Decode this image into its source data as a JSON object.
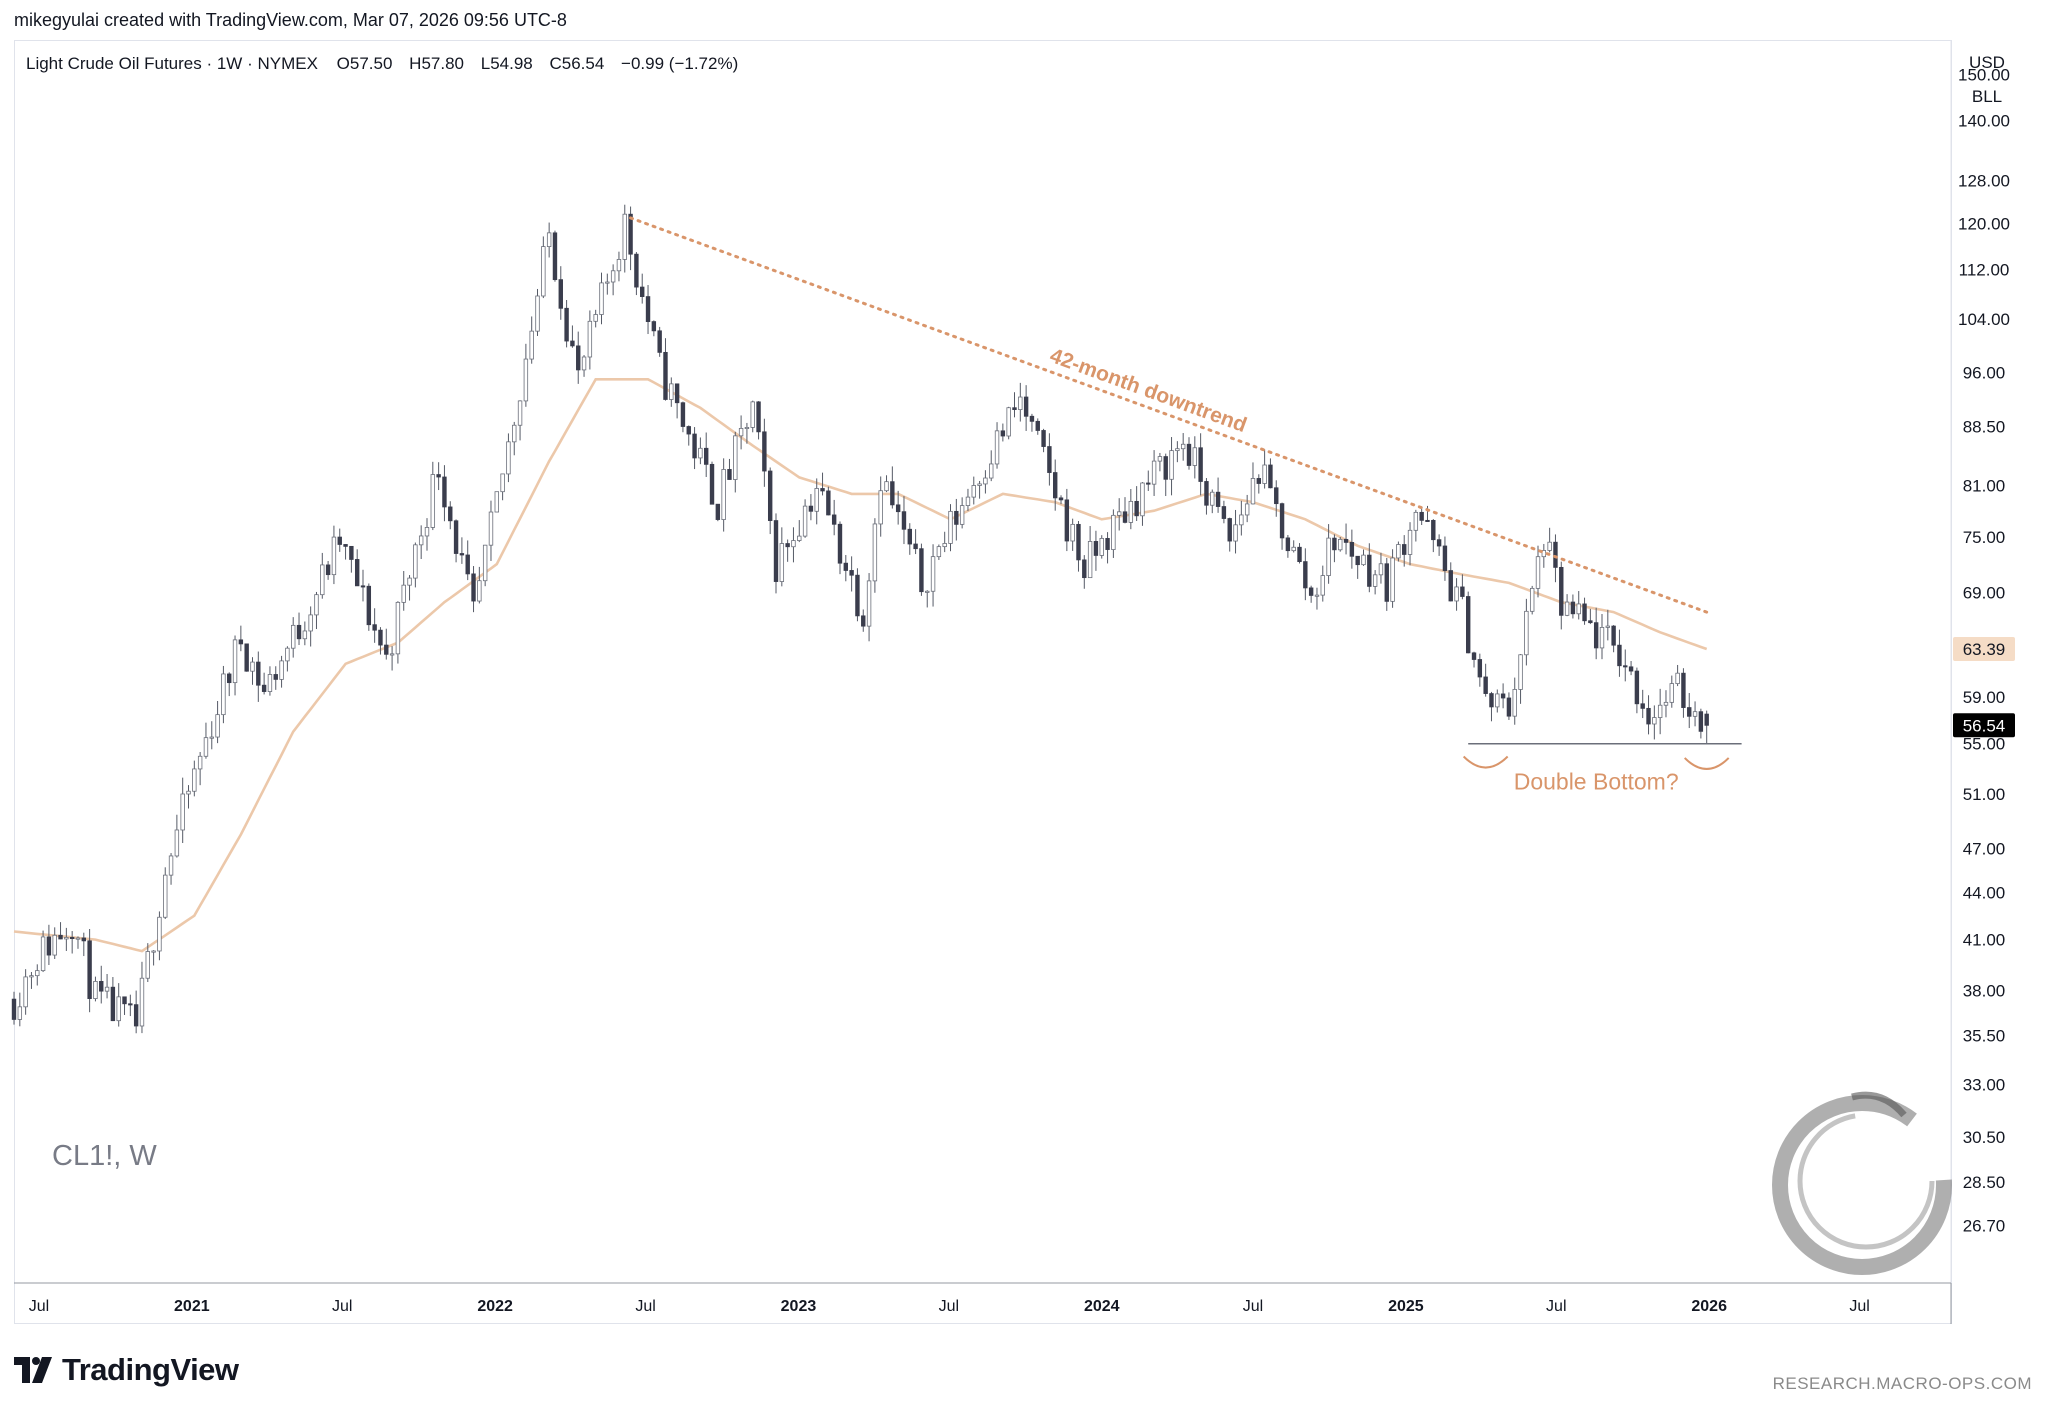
{
  "header": {
    "credit": "mikegyulai created with TradingView.com, Mar 07, 2026 09:56 UTC-8"
  },
  "legend": {
    "symbol_desc": "Light Crude Oil Futures · 1W · NYMEX",
    "open_label": "O",
    "open": "57.50",
    "high_label": "H",
    "high": "57.80",
    "low_label": "L",
    "low": "54.98",
    "close_label": "C",
    "close": "56.54",
    "change": "−0.99 (−1.72%)"
  },
  "price_scale": {
    "currency": "USD",
    "unit": "BLL",
    "ma_value": "63.39",
    "last_value": "56.54"
  },
  "symbol_watermark": "CL1!, W",
  "annotations": {
    "trend_label": "42-month downtrend",
    "pattern_label": "Double Bottom?"
  },
  "footer": {
    "brand": "TradingView",
    "site": "RESEARCH.MACRO-OPS.COM"
  },
  "colors": {
    "up_candle": "#ffffff",
    "down_candle": "#3a3d4d",
    "wick": "#555a66",
    "moving_average": "#ecc8aa",
    "annotation": "#d9956a",
    "ma_badge": "#f5dcc6",
    "last_badge": "#000000"
  },
  "chart_data": {
    "type": "candlestick",
    "title": "Light Crude Oil Futures · 1W · NYMEX",
    "scale": "log",
    "ylim": [
      24.5,
      158
    ],
    "y_ticks": [
      150.0,
      140.0,
      128.0,
      120.0,
      112.0,
      104.0,
      96.0,
      88.5,
      81.0,
      75.0,
      69.0,
      63.39,
      59.0,
      56.54,
      55.0,
      51.0,
      47.0,
      44.0,
      41.0,
      38.0,
      35.5,
      33.0,
      30.5,
      28.5,
      26.7
    ],
    "y_tick_labels": [
      "150.00",
      "140.00",
      "128.00",
      "120.00",
      "112.00",
      "104.00",
      "96.00",
      "88.50",
      "81.00",
      "75.00",
      "69.00",
      "",
      "59.00",
      "",
      "55.00",
      "51.00",
      "47.00",
      "44.00",
      "41.00",
      "38.00",
      "35.50",
      "33.00",
      "30.50",
      "28.50",
      "26.70"
    ],
    "x_range": [
      "2020-06-01",
      "2026-10-19"
    ],
    "x_ticks": [
      {
        "date": "2020-07-01",
        "label": "Jul",
        "bold": false
      },
      {
        "date": "2021-01-01",
        "label": "2021",
        "bold": true
      },
      {
        "date": "2021-07-01",
        "label": "Jul",
        "bold": false
      },
      {
        "date": "2022-01-01",
        "label": "2022",
        "bold": true
      },
      {
        "date": "2022-07-01",
        "label": "Jul",
        "bold": false
      },
      {
        "date": "2023-01-01",
        "label": "2023",
        "bold": true
      },
      {
        "date": "2023-07-01",
        "label": "Jul",
        "bold": false
      },
      {
        "date": "2024-01-01",
        "label": "2024",
        "bold": true
      },
      {
        "date": "2024-07-01",
        "label": "Jul",
        "bold": false
      },
      {
        "date": "2025-01-01",
        "label": "2025",
        "bold": true
      },
      {
        "date": "2025-07-01",
        "label": "Jul",
        "bold": false
      },
      {
        "date": "2026-01-01",
        "label": "2026",
        "bold": true
      },
      {
        "date": "2026-07-01",
        "label": "Jul",
        "bold": false
      }
    ],
    "price_anchors": [
      [
        "2020-06-01",
        37.5
      ],
      [
        "2020-06-29",
        40.0
      ],
      [
        "2020-08-10",
        42.3
      ],
      [
        "2020-09-07",
        37.5
      ],
      [
        "2020-10-26",
        36.0
      ],
      [
        "2020-11-30",
        45.5
      ],
      [
        "2021-01-04",
        52.5
      ],
      [
        "2021-03-01",
        64.5
      ],
      [
        "2021-03-29",
        59.5
      ],
      [
        "2021-05-10",
        65.5
      ],
      [
        "2021-06-28",
        74.5
      ],
      [
        "2021-08-23",
        62.5
      ],
      [
        "2021-10-25",
        83.5
      ],
      [
        "2021-12-06",
        66.5
      ],
      [
        "2022-01-17",
        86.0
      ],
      [
        "2022-03-07",
        118.0
      ],
      [
        "2022-04-11",
        95.0
      ],
      [
        "2022-06-06",
        120.0
      ],
      [
        "2022-07-18",
        96.5
      ],
      [
        "2022-09-26",
        79.0
      ],
      [
        "2022-11-07",
        91.0
      ],
      [
        "2022-12-05",
        72.0
      ],
      [
        "2023-01-23",
        81.0
      ],
      [
        "2023-03-20",
        67.0
      ],
      [
        "2023-04-10",
        82.5
      ],
      [
        "2023-05-29",
        70.0
      ],
      [
        "2023-07-31",
        81.5
      ],
      [
        "2023-09-25",
        92.0
      ],
      [
        "2023-12-11",
        71.5
      ],
      [
        "2024-01-29",
        78.0
      ],
      [
        "2024-04-08",
        86.5
      ],
      [
        "2024-06-03",
        74.5
      ],
      [
        "2024-07-08",
        83.0
      ],
      [
        "2024-09-09",
        68.5
      ],
      [
        "2024-10-07",
        75.0
      ],
      [
        "2024-12-09",
        70.0
      ],
      [
        "2025-01-13",
        78.5
      ],
      [
        "2025-03-10",
        67.0
      ],
      [
        "2025-04-07",
        58.5
      ],
      [
        "2025-05-05",
        58.0
      ],
      [
        "2025-06-16",
        75.0
      ],
      [
        "2025-07-07",
        67.5
      ],
      [
        "2025-09-15",
        63.0
      ],
      [
        "2025-10-20",
        57.5
      ],
      [
        "2025-11-24",
        59.5
      ],
      [
        "2025-12-29",
        56.6
      ]
    ],
    "ohlc_last": {
      "open": 57.5,
      "high": 57.8,
      "low": 54.98,
      "close": 56.54
    },
    "moving_average": {
      "series": [
        [
          "2020-06-01",
          41.5
        ],
        [
          "2020-09-07",
          41.0
        ],
        [
          "2020-11-02",
          40.3
        ],
        [
          "2021-01-04",
          42.5
        ],
        [
          "2021-03-01",
          48.0
        ],
        [
          "2021-05-03",
          56.0
        ],
        [
          "2021-07-05",
          62.0
        ],
        [
          "2021-09-06",
          64.0
        ],
        [
          "2021-11-01",
          68.0
        ],
        [
          "2022-01-03",
          72.0
        ],
        [
          "2022-03-07",
          84.0
        ],
        [
          "2022-05-02",
          95.0
        ],
        [
          "2022-07-04",
          95.0
        ],
        [
          "2022-09-05",
          91.0
        ],
        [
          "2022-11-07",
          86.0
        ],
        [
          "2023-01-02",
          82.0
        ],
        [
          "2023-03-06",
          80.0
        ],
        [
          "2023-05-01",
          80.0
        ],
        [
          "2023-07-03",
          77.0
        ],
        [
          "2023-09-04",
          80.0
        ],
        [
          "2023-11-06",
          79.0
        ],
        [
          "2024-01-01",
          77.0
        ],
        [
          "2024-03-04",
          78.0
        ],
        [
          "2024-05-06",
          80.0
        ],
        [
          "2024-07-01",
          79.0
        ],
        [
          "2024-09-02",
          77.0
        ],
        [
          "2024-11-04",
          74.0
        ],
        [
          "2025-01-06",
          72.0
        ],
        [
          "2025-03-03",
          71.0
        ],
        [
          "2025-05-05",
          70.0
        ],
        [
          "2025-07-07",
          68.0
        ],
        [
          "2025-09-08",
          67.0
        ],
        [
          "2025-11-03",
          65.0
        ],
        [
          "2025-12-29",
          63.39
        ]
      ]
    },
    "downtrend_line": {
      "from": [
        "2022-06-13",
        121.0
      ],
      "to": [
        "2025-12-29",
        67.0
      ]
    },
    "support_line": {
      "from": [
        "2025-03-17",
        55.0
      ],
      "to": [
        "2026-02-09",
        55.0
      ]
    },
    "double_bottom_lows": [
      [
        "2025-04-07",
        55.1
      ],
      [
        "2025-12-29",
        54.98
      ]
    ]
  }
}
